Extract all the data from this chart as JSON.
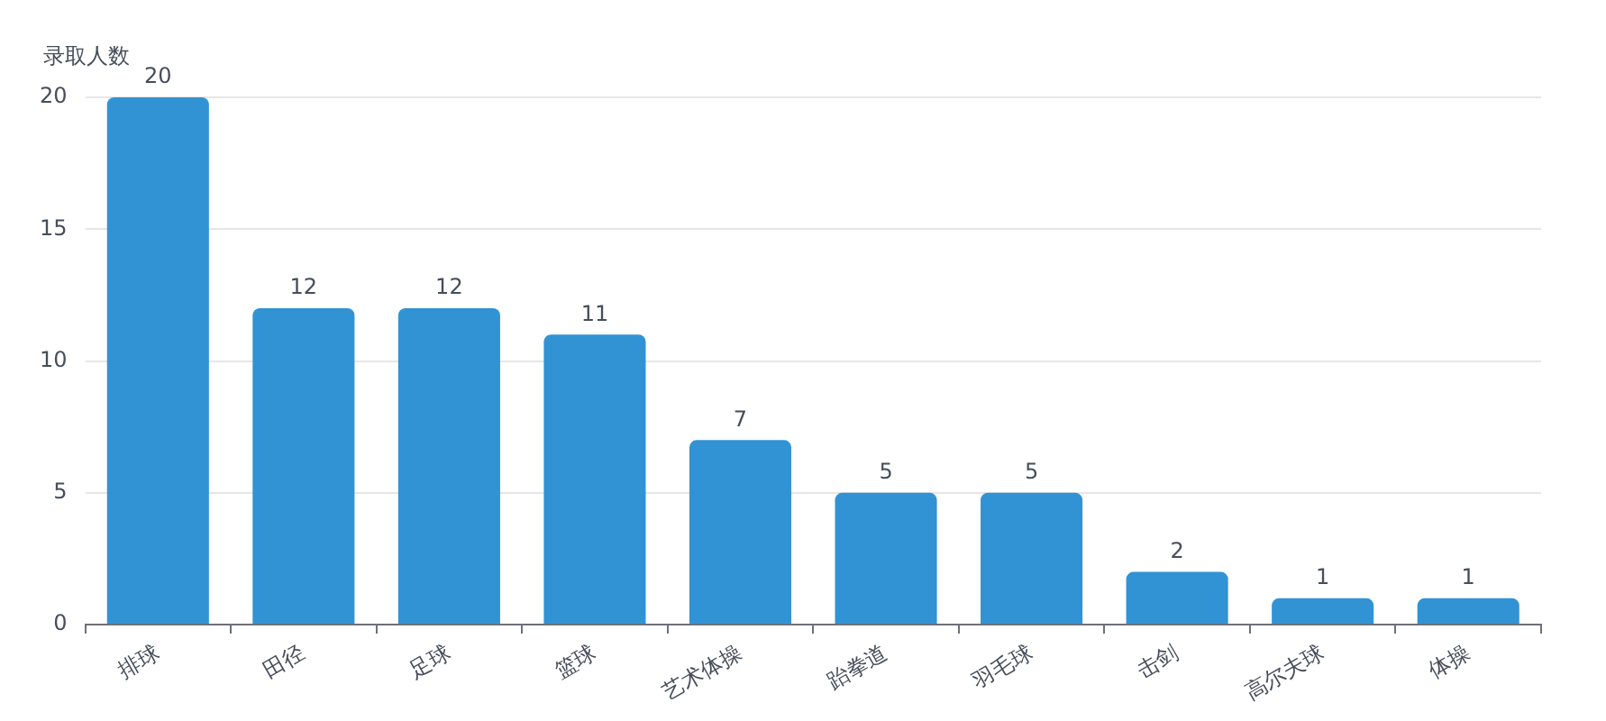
{
  "chart_data": {
    "type": "bar",
    "ylabel": "录取人数",
    "categories": [
      "排球",
      "田径",
      "足球",
      "篮球",
      "艺术体操",
      "跆拳道",
      "羽毛球",
      "击剑",
      "高尔夫球",
      "体操"
    ],
    "values": [
      20,
      12,
      12,
      11,
      7,
      5,
      5,
      2,
      1,
      1
    ],
    "color": "#3193d4",
    "ylim": [
      0,
      20
    ],
    "yticks": [
      0,
      5,
      10,
      15,
      20
    ],
    "grid": "y",
    "data_labels": true,
    "legend": false
  }
}
